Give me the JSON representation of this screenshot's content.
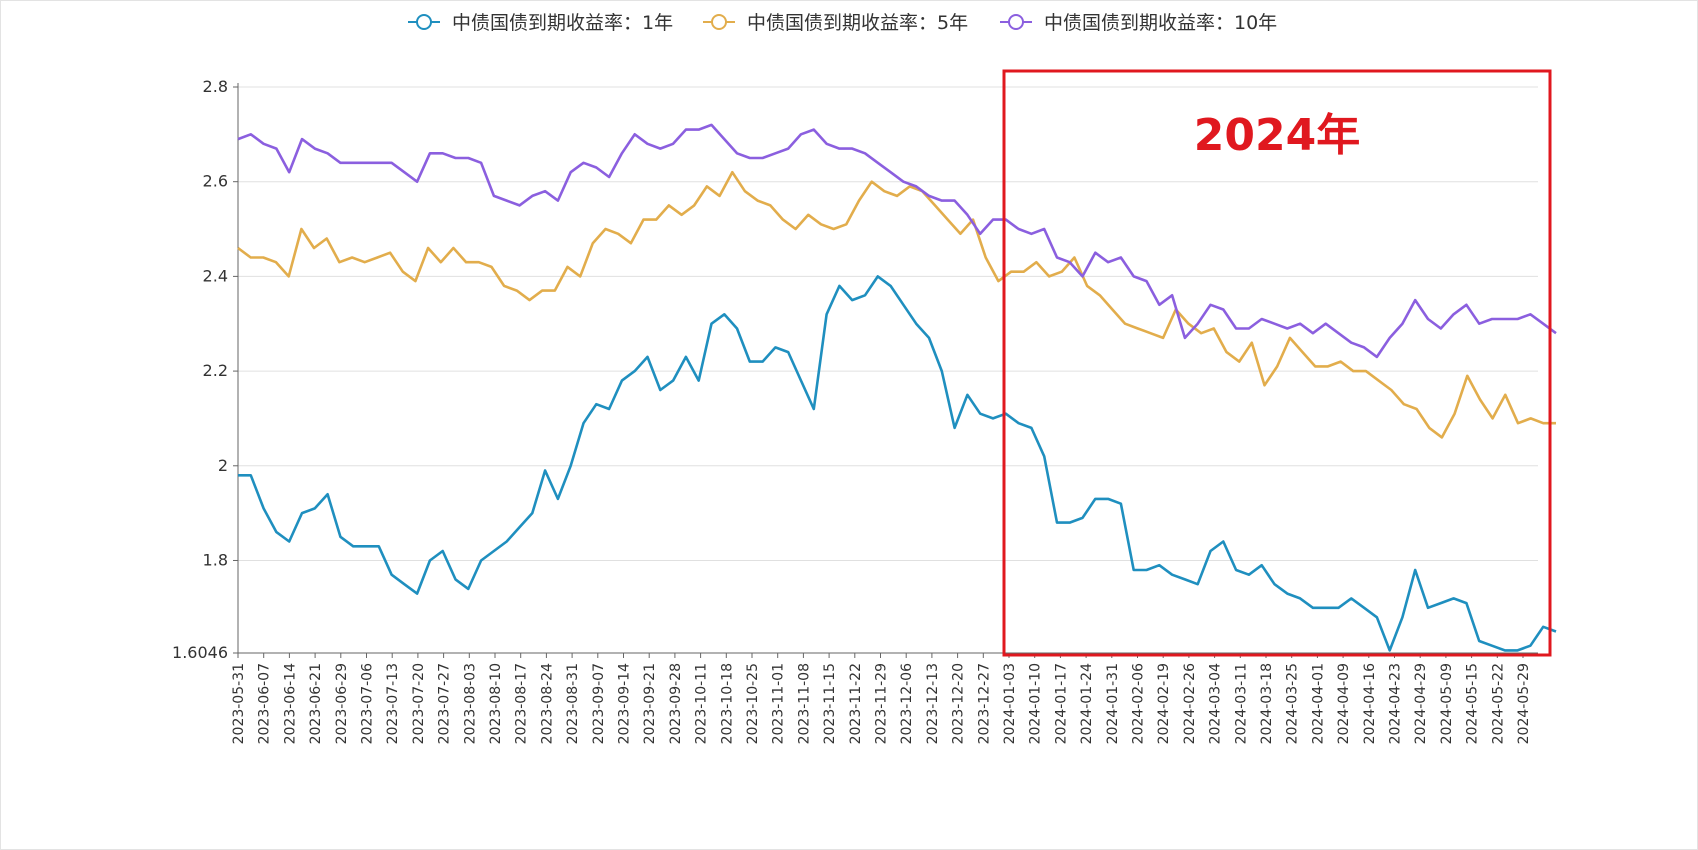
{
  "chart_data": {
    "type": "line",
    "legend_position": "top-center",
    "ylim": [
      1.6046,
      2.8
    ],
    "y_ticks": [
      "1.6046",
      "1.8",
      "2",
      "2.2",
      "2.4",
      "2.6",
      "2.8"
    ],
    "grid": "horizontal",
    "x_ticks": [
      "2023-05-31",
      "2023-06-07",
      "2023-06-14",
      "2023-06-21",
      "2023-06-29",
      "2023-07-06",
      "2023-07-13",
      "2023-07-20",
      "2023-07-27",
      "2023-08-03",
      "2023-08-10",
      "2023-08-17",
      "2023-08-24",
      "2023-08-31",
      "2023-09-07",
      "2023-09-14",
      "2023-09-21",
      "2023-09-28",
      "2023-10-11",
      "2023-10-18",
      "2023-10-25",
      "2023-11-01",
      "2023-11-08",
      "2023-11-15",
      "2023-11-22",
      "2023-11-29",
      "2023-12-06",
      "2023-12-13",
      "2023-12-20",
      "2023-12-27",
      "2024-01-03",
      "2024-01-10",
      "2024-01-17",
      "2024-01-24",
      "2024-01-31",
      "2024-02-06",
      "2024-02-19",
      "2024-02-26",
      "2024-03-04",
      "2024-03-11",
      "2024-03-18",
      "2024-03-25",
      "2024-04-01",
      "2024-04-09",
      "2024-04-16",
      "2024-04-23",
      "2024-04-29",
      "2024-05-09",
      "2024-05-15",
      "2024-05-22",
      "2024-05-29"
    ],
    "series": [
      {
        "name": "中债国债到期收益率：1年",
        "color": "#1f8fbf",
        "values": [
          1.98,
          1.98,
          1.91,
          1.86,
          1.84,
          1.9,
          1.91,
          1.94,
          1.85,
          1.83,
          1.83,
          1.83,
          1.77,
          1.75,
          1.73,
          1.8,
          1.82,
          1.76,
          1.74,
          1.8,
          1.82,
          1.84,
          1.87,
          1.9,
          1.99,
          1.93,
          2.0,
          2.09,
          2.13,
          2.12,
          2.18,
          2.2,
          2.23,
          2.16,
          2.18,
          2.23,
          2.18,
          2.3,
          2.32,
          2.29,
          2.22,
          2.22,
          2.25,
          2.24,
          2.18,
          2.12,
          2.32,
          2.38,
          2.35,
          2.36,
          2.4,
          2.38,
          2.34,
          2.3,
          2.27,
          2.2,
          2.08,
          2.15,
          2.11,
          2.1,
          2.11,
          2.09,
          2.08,
          2.02,
          1.88,
          1.88,
          1.89,
          1.93,
          1.93,
          1.92,
          1.78,
          1.78,
          1.79,
          1.77,
          1.76,
          1.75,
          1.82,
          1.84,
          1.78,
          1.77,
          1.79,
          1.75,
          1.73,
          1.72,
          1.7,
          1.7,
          1.7,
          1.72,
          1.7,
          1.68,
          1.61,
          1.68,
          1.78,
          1.7,
          1.71,
          1.72,
          1.71,
          1.63,
          1.62,
          1.61,
          1.61,
          1.62,
          1.66,
          1.65
        ]
      },
      {
        "name": "中债国债到期收益率：5年",
        "color": "#e2ad4c",
        "values": [
          2.46,
          2.44,
          2.44,
          2.43,
          2.4,
          2.5,
          2.46,
          2.48,
          2.43,
          2.44,
          2.43,
          2.44,
          2.45,
          2.41,
          2.39,
          2.46,
          2.43,
          2.46,
          2.43,
          2.43,
          2.42,
          2.38,
          2.37,
          2.35,
          2.37,
          2.37,
          2.42,
          2.4,
          2.47,
          2.5,
          2.49,
          2.47,
          2.52,
          2.52,
          2.55,
          2.53,
          2.55,
          2.59,
          2.57,
          2.62,
          2.58,
          2.56,
          2.55,
          2.52,
          2.5,
          2.53,
          2.51,
          2.5,
          2.51,
          2.56,
          2.6,
          2.58,
          2.57,
          2.59,
          2.58,
          2.55,
          2.52,
          2.49,
          2.52,
          2.44,
          2.39,
          2.41,
          2.41,
          2.43,
          2.4,
          2.41,
          2.44,
          2.38,
          2.36,
          2.33,
          2.3,
          2.29,
          2.28,
          2.27,
          2.33,
          2.3,
          2.28,
          2.29,
          2.24,
          2.22,
          2.26,
          2.17,
          2.21,
          2.27,
          2.24,
          2.21,
          2.21,
          2.22,
          2.2,
          2.2,
          2.18,
          2.16,
          2.13,
          2.12,
          2.08,
          2.06,
          2.11,
          2.19,
          2.14,
          2.1,
          2.15,
          2.09,
          2.1,
          2.09,
          2.09
        ]
      },
      {
        "name": "中债国债到期收益率：10年",
        "color": "#8b5fdf",
        "values": [
          2.69,
          2.7,
          2.68,
          2.67,
          2.62,
          2.69,
          2.67,
          2.66,
          2.64,
          2.64,
          2.64,
          2.64,
          2.64,
          2.62,
          2.6,
          2.66,
          2.66,
          2.65,
          2.65,
          2.64,
          2.57,
          2.56,
          2.55,
          2.57,
          2.58,
          2.56,
          2.62,
          2.64,
          2.63,
          2.61,
          2.66,
          2.7,
          2.68,
          2.67,
          2.68,
          2.71,
          2.71,
          2.72,
          2.69,
          2.66,
          2.65,
          2.65,
          2.66,
          2.67,
          2.7,
          2.71,
          2.68,
          2.67,
          2.67,
          2.66,
          2.64,
          2.62,
          2.6,
          2.59,
          2.57,
          2.56,
          2.56,
          2.53,
          2.49,
          2.52,
          2.52,
          2.5,
          2.49,
          2.5,
          2.44,
          2.43,
          2.4,
          2.45,
          2.43,
          2.44,
          2.4,
          2.39,
          2.34,
          2.36,
          2.27,
          2.3,
          2.34,
          2.33,
          2.29,
          2.29,
          2.31,
          2.3,
          2.29,
          2.3,
          2.28,
          2.3,
          2.28,
          2.26,
          2.25,
          2.23,
          2.27,
          2.3,
          2.35,
          2.31,
          2.29,
          2.32,
          2.34,
          2.3,
          2.31,
          2.31,
          2.31,
          2.32,
          2.3,
          2.28
        ]
      }
    ],
    "annotation": {
      "label": "2024年",
      "color": "#e0181f"
    }
  }
}
